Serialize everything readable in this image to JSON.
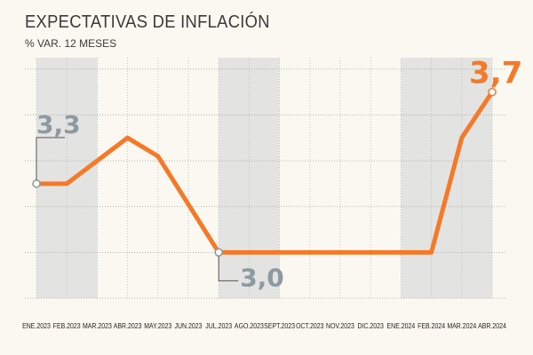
{
  "title": "EXPECTATIVAS DE INFLACIÓN",
  "subtitle": "% VAR. 12 MESES",
  "colors": {
    "line": "#f47a2a",
    "shade": "#e3e3e1",
    "annotation_gray": "#8c9aa1",
    "annotation_orange": "#f47a2a"
  },
  "chart_data": {
    "type": "line",
    "categories": [
      "ENE.2023",
      "FEB.2023",
      "MAR.2023",
      "ABR.2023",
      "MAY.2023",
      "JUN.2023",
      "JUL.2023",
      "AGO.2023",
      "SEPT.2023",
      "OCT.2023",
      "NOV.2023",
      "DIC.2023",
      "ENE.2024",
      "FEB.2024",
      "MAR.2024",
      "ABR.2024"
    ],
    "series": [
      {
        "values": [
          3.3,
          3.3,
          3.4,
          3.5,
          3.42,
          3.21,
          3.0,
          3.0,
          3.0,
          3.0,
          3.0,
          3.0,
          3.0,
          3.0,
          3.5,
          3.7
        ]
      }
    ],
    "ylim": [
      2.8,
      3.85
    ],
    "grid": true,
    "shaded_categories": [
      "ENE.2023",
      "FEB.2023",
      "MAR.2023",
      "JUL.2023",
      "AGO.2023",
      "SEPT.2023",
      "ENE.2024",
      "FEB.2024",
      "MAR.2024",
      "ABR.2024"
    ],
    "annotations": [
      {
        "category": "ENE.2023",
        "text": "3,3",
        "color": "gray"
      },
      {
        "category": "JUL.2023",
        "text": "3,0",
        "color": "gray"
      },
      {
        "category": "ABR.2024",
        "text": "3,7",
        "color": "orange"
      }
    ]
  }
}
